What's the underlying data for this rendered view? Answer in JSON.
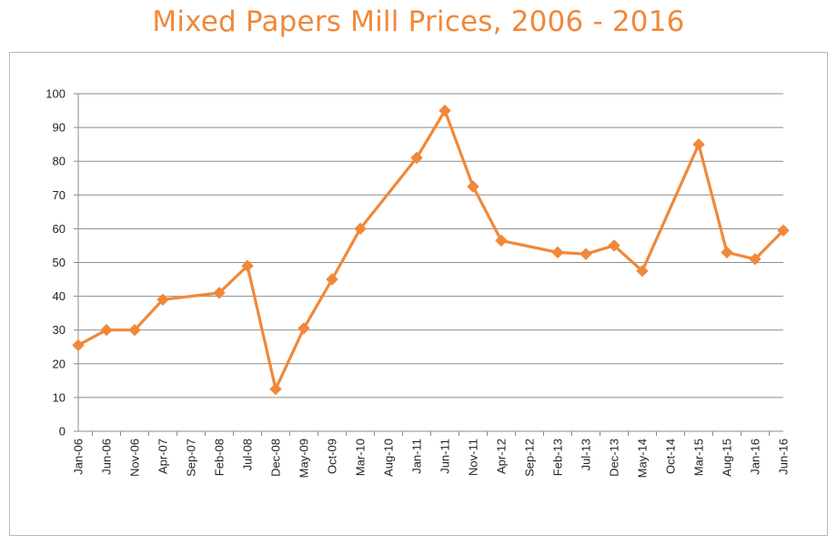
{
  "colors": {
    "series": "#f0883a",
    "title": "#f0883a",
    "grid": "#8c8c8c",
    "frame": "#b9b9b9"
  },
  "chart_data": {
    "type": "line",
    "title": "Mixed Papers Mill Prices, 2006 - 2016",
    "xlabel": "",
    "ylabel": "",
    "ylim": [
      0,
      100
    ],
    "yticks": [
      0,
      10,
      20,
      30,
      40,
      50,
      60,
      70,
      80,
      90,
      100
    ],
    "grid": true,
    "legend": "none",
    "x": [
      "Jan-06",
      "Jun-06",
      "Nov-06",
      "Apr-07",
      "Sep-07",
      "Feb-08",
      "Jul-08",
      "Dec-08",
      "May-09",
      "Oct-09",
      "Mar-10",
      "Aug-10",
      "Jan-11",
      "Jun-11",
      "Nov-11",
      "Apr-12",
      "Sep-12",
      "Feb-13",
      "Jul-13",
      "Dec-13",
      "May-14",
      "Oct-14",
      "Mar-15",
      "Aug-15",
      "Jan-16",
      "Jun-16"
    ],
    "series": [
      {
        "marker": "diamond",
        "x": [
          "Jan-06",
          "Jun-06",
          "Nov-06",
          "Apr-07",
          "Feb-08",
          "Jul-08",
          "Dec-08",
          "May-09",
          "Oct-09",
          "Mar-10",
          "Jan-11",
          "Jun-11",
          "Nov-11",
          "Apr-12",
          "Feb-13",
          "Jul-13",
          "Dec-13",
          "May-14",
          "Mar-15",
          "Aug-15",
          "Jan-16",
          "Jun-16"
        ],
        "values": [
          25.5,
          30,
          30,
          39,
          41,
          49,
          12.5,
          30.5,
          45,
          60,
          81,
          95,
          72.5,
          56.5,
          53,
          52.5,
          55,
          47.5,
          85,
          53,
          51,
          59.5
        ]
      }
    ]
  }
}
